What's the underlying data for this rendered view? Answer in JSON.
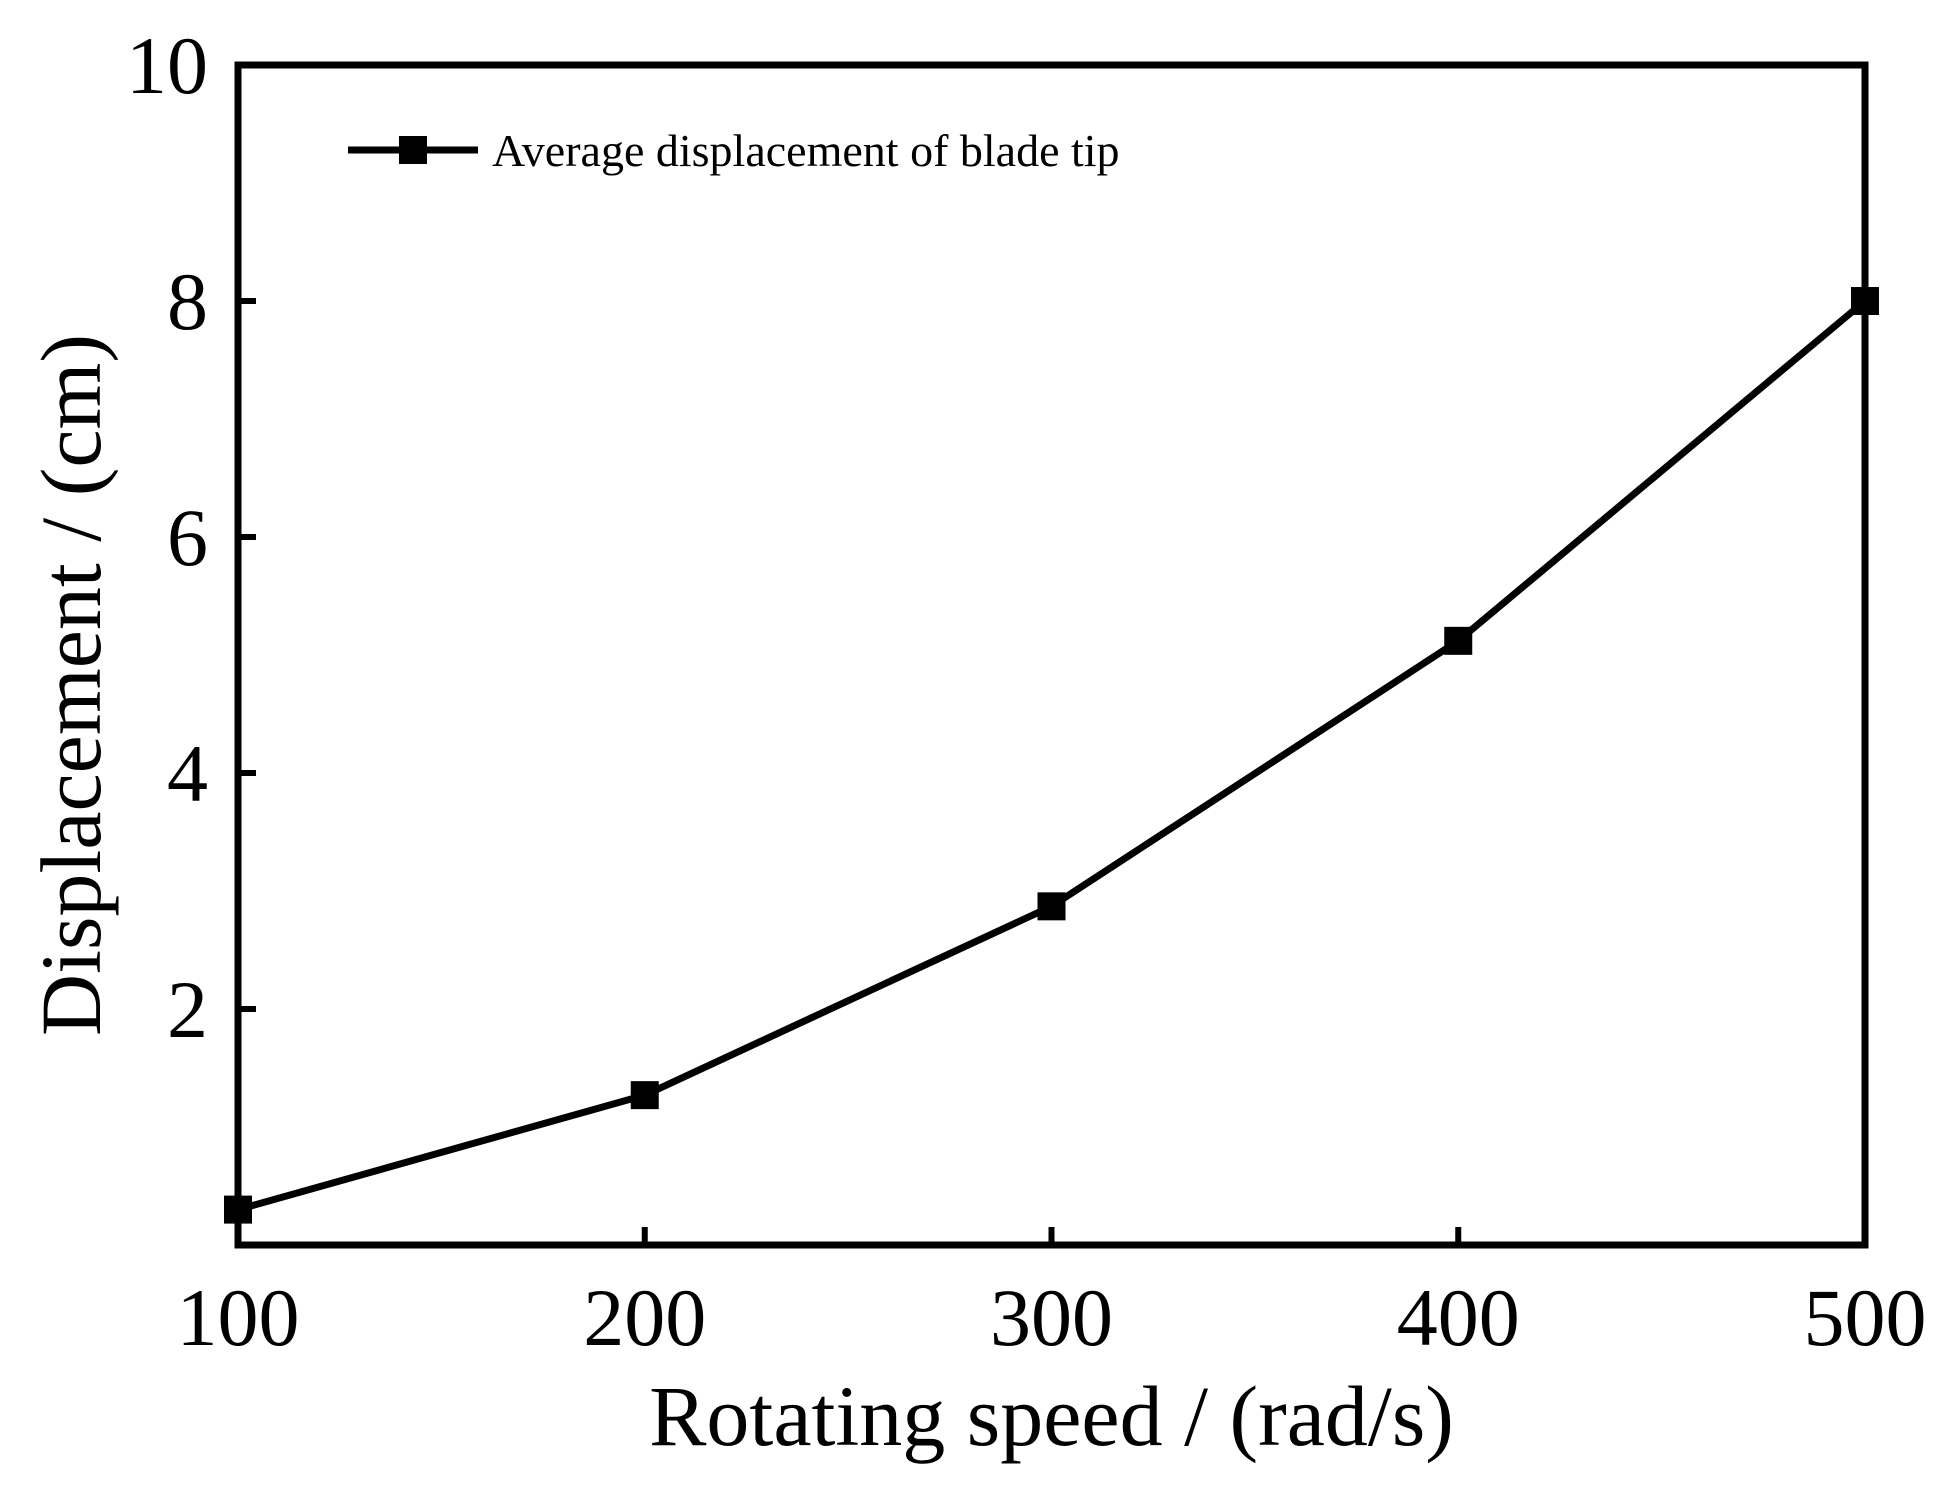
{
  "chart_data": {
    "type": "line",
    "title": "",
    "xlabel": "Rotating speed / (rad/s)",
    "ylabel": "Displacement / (cm)",
    "xlim": [
      100,
      500
    ],
    "ylim": [
      0,
      10
    ],
    "x_ticks": [
      100,
      200,
      300,
      400,
      500
    ],
    "y_ticks": [
      2,
      4,
      6,
      8,
      10
    ],
    "x_tick_labels": [
      "100",
      "200",
      "300",
      "400",
      "500"
    ],
    "y_tick_labels": [
      "2",
      "4",
      "6",
      "8",
      "10"
    ],
    "grid": false,
    "legend_position": "top-left",
    "series": [
      {
        "name": "Average displacement of blade tip",
        "marker": "square",
        "color": "#000000",
        "x": [
          100,
          200,
          300,
          400,
          500
        ],
        "y": [
          0.3,
          1.27,
          2.87,
          5.12,
          8.0
        ]
      }
    ]
  }
}
